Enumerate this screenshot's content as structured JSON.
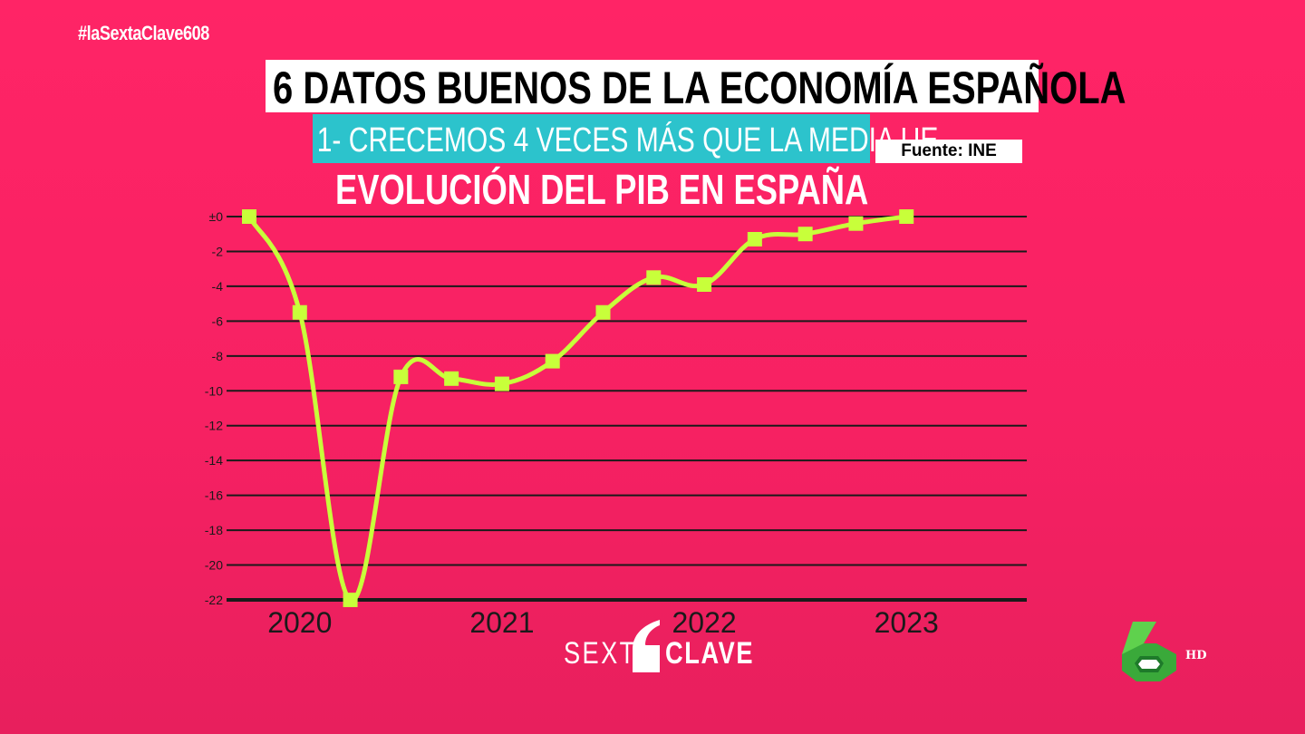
{
  "hashtag": "#laSextaClave608",
  "title": "6 DATOS BUENOS DE LA ECONOMÍA ESPAÑOLA",
  "subtitle": "1- CRECEMOS 4 VECES MÁS QUE LA MEDIA UE",
  "source": "Fuente: INE",
  "logo": {
    "left": "SEXTA",
    "right": "CLAVE"
  },
  "channel": {
    "badge": "HD",
    "icon": "lasexta-6-logo-icon"
  },
  "colors": {
    "background": "#ff2466",
    "line": "#c8ff3a",
    "subtitle_bg": "#2cc3cc",
    "grid": "#1a1a1a"
  },
  "chart_data": {
    "type": "line",
    "title": "EVOLUCIÓN DEL PIB EN ESPAÑA",
    "xlabel": "",
    "ylabel": "",
    "x_tick_labels": [
      "2020",
      "2021",
      "2022",
      "2023"
    ],
    "x_tick_positions": [
      2020,
      2021,
      2022,
      2023
    ],
    "y_tick_labels": [
      "±0",
      "-2",
      "-4",
      "-6",
      "-8",
      "-10",
      "-12",
      "-14",
      "-16",
      "-18",
      "-20",
      "-22"
    ],
    "ylim": [
      -22,
      0
    ],
    "xlim": [
      2019.75,
      2023.25
    ],
    "grid": true,
    "series": [
      {
        "points": [
          {
            "x": 2019.75,
            "y": 0
          },
          {
            "x": 2020.0,
            "y": -5.5
          },
          {
            "x": 2020.25,
            "y": -22
          },
          {
            "x": 2020.5,
            "y": -9.2
          },
          {
            "x": 2020.75,
            "y": -9.3
          },
          {
            "x": 2021.0,
            "y": -9.6
          },
          {
            "x": 2021.25,
            "y": -8.3
          },
          {
            "x": 2021.5,
            "y": -5.5
          },
          {
            "x": 2021.75,
            "y": -3.5
          },
          {
            "x": 2022.0,
            "y": -3.9
          },
          {
            "x": 2022.25,
            "y": -1.3
          },
          {
            "x": 2022.5,
            "y": -1.0
          },
          {
            "x": 2022.75,
            "y": -0.4
          },
          {
            "x": 2023.0,
            "y": 0
          }
        ]
      }
    ]
  }
}
